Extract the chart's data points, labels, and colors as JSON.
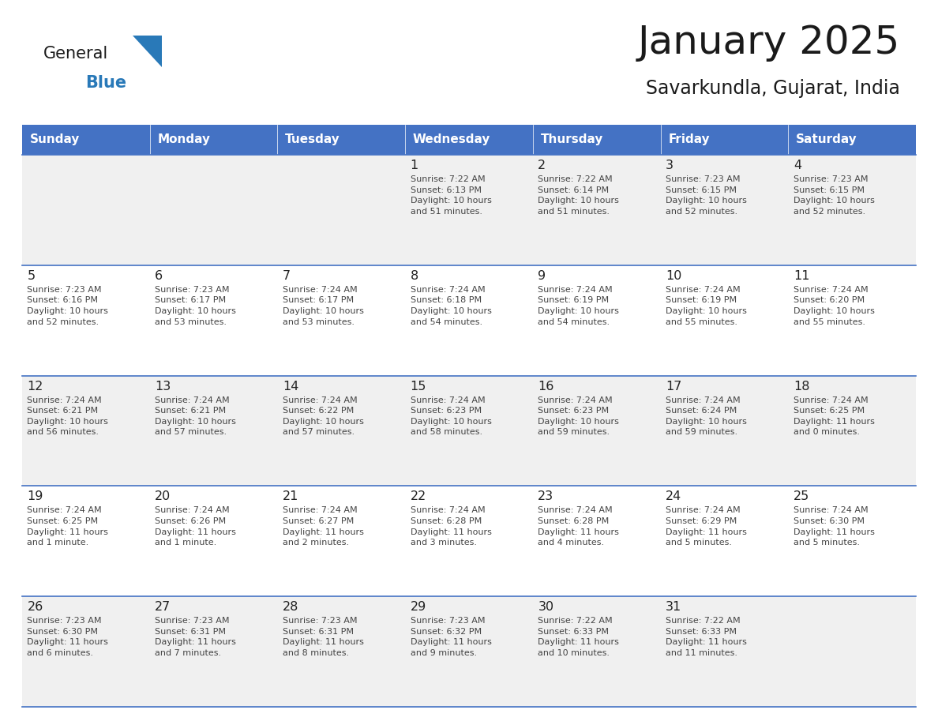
{
  "title": "January 2025",
  "subtitle": "Savarkundla, Gujarat, India",
  "header_bg": "#4472C4",
  "header_text_color": "#FFFFFF",
  "days_of_week": [
    "Sunday",
    "Monday",
    "Tuesday",
    "Wednesday",
    "Thursday",
    "Friday",
    "Saturday"
  ],
  "weeks": [
    [
      {
        "day": "",
        "info": ""
      },
      {
        "day": "",
        "info": ""
      },
      {
        "day": "",
        "info": ""
      },
      {
        "day": "1",
        "info": "Sunrise: 7:22 AM\nSunset: 6:13 PM\nDaylight: 10 hours\nand 51 minutes."
      },
      {
        "day": "2",
        "info": "Sunrise: 7:22 AM\nSunset: 6:14 PM\nDaylight: 10 hours\nand 51 minutes."
      },
      {
        "day": "3",
        "info": "Sunrise: 7:23 AM\nSunset: 6:15 PM\nDaylight: 10 hours\nand 52 minutes."
      },
      {
        "day": "4",
        "info": "Sunrise: 7:23 AM\nSunset: 6:15 PM\nDaylight: 10 hours\nand 52 minutes."
      }
    ],
    [
      {
        "day": "5",
        "info": "Sunrise: 7:23 AM\nSunset: 6:16 PM\nDaylight: 10 hours\nand 52 minutes."
      },
      {
        "day": "6",
        "info": "Sunrise: 7:23 AM\nSunset: 6:17 PM\nDaylight: 10 hours\nand 53 minutes."
      },
      {
        "day": "7",
        "info": "Sunrise: 7:24 AM\nSunset: 6:17 PM\nDaylight: 10 hours\nand 53 minutes."
      },
      {
        "day": "8",
        "info": "Sunrise: 7:24 AM\nSunset: 6:18 PM\nDaylight: 10 hours\nand 54 minutes."
      },
      {
        "day": "9",
        "info": "Sunrise: 7:24 AM\nSunset: 6:19 PM\nDaylight: 10 hours\nand 54 minutes."
      },
      {
        "day": "10",
        "info": "Sunrise: 7:24 AM\nSunset: 6:19 PM\nDaylight: 10 hours\nand 55 minutes."
      },
      {
        "day": "11",
        "info": "Sunrise: 7:24 AM\nSunset: 6:20 PM\nDaylight: 10 hours\nand 55 minutes."
      }
    ],
    [
      {
        "day": "12",
        "info": "Sunrise: 7:24 AM\nSunset: 6:21 PM\nDaylight: 10 hours\nand 56 minutes."
      },
      {
        "day": "13",
        "info": "Sunrise: 7:24 AM\nSunset: 6:21 PM\nDaylight: 10 hours\nand 57 minutes."
      },
      {
        "day": "14",
        "info": "Sunrise: 7:24 AM\nSunset: 6:22 PM\nDaylight: 10 hours\nand 57 minutes."
      },
      {
        "day": "15",
        "info": "Sunrise: 7:24 AM\nSunset: 6:23 PM\nDaylight: 10 hours\nand 58 minutes."
      },
      {
        "day": "16",
        "info": "Sunrise: 7:24 AM\nSunset: 6:23 PM\nDaylight: 10 hours\nand 59 minutes."
      },
      {
        "day": "17",
        "info": "Sunrise: 7:24 AM\nSunset: 6:24 PM\nDaylight: 10 hours\nand 59 minutes."
      },
      {
        "day": "18",
        "info": "Sunrise: 7:24 AM\nSunset: 6:25 PM\nDaylight: 11 hours\nand 0 minutes."
      }
    ],
    [
      {
        "day": "19",
        "info": "Sunrise: 7:24 AM\nSunset: 6:25 PM\nDaylight: 11 hours\nand 1 minute."
      },
      {
        "day": "20",
        "info": "Sunrise: 7:24 AM\nSunset: 6:26 PM\nDaylight: 11 hours\nand 1 minute."
      },
      {
        "day": "21",
        "info": "Sunrise: 7:24 AM\nSunset: 6:27 PM\nDaylight: 11 hours\nand 2 minutes."
      },
      {
        "day": "22",
        "info": "Sunrise: 7:24 AM\nSunset: 6:28 PM\nDaylight: 11 hours\nand 3 minutes."
      },
      {
        "day": "23",
        "info": "Sunrise: 7:24 AM\nSunset: 6:28 PM\nDaylight: 11 hours\nand 4 minutes."
      },
      {
        "day": "24",
        "info": "Sunrise: 7:24 AM\nSunset: 6:29 PM\nDaylight: 11 hours\nand 5 minutes."
      },
      {
        "day": "25",
        "info": "Sunrise: 7:24 AM\nSunset: 6:30 PM\nDaylight: 11 hours\nand 5 minutes."
      }
    ],
    [
      {
        "day": "26",
        "info": "Sunrise: 7:23 AM\nSunset: 6:30 PM\nDaylight: 11 hours\nand 6 minutes."
      },
      {
        "day": "27",
        "info": "Sunrise: 7:23 AM\nSunset: 6:31 PM\nDaylight: 11 hours\nand 7 minutes."
      },
      {
        "day": "28",
        "info": "Sunrise: 7:23 AM\nSunset: 6:31 PM\nDaylight: 11 hours\nand 8 minutes."
      },
      {
        "day": "29",
        "info": "Sunrise: 7:23 AM\nSunset: 6:32 PM\nDaylight: 11 hours\nand 9 minutes."
      },
      {
        "day": "30",
        "info": "Sunrise: 7:22 AM\nSunset: 6:33 PM\nDaylight: 11 hours\nand 10 minutes."
      },
      {
        "day": "31",
        "info": "Sunrise: 7:22 AM\nSunset: 6:33 PM\nDaylight: 11 hours\nand 11 minutes."
      },
      {
        "day": "",
        "info": ""
      }
    ]
  ],
  "logo_general_color": "#1a1a1a",
  "logo_blue_color": "#2979b8",
  "logo_triangle_color": "#2979b8",
  "title_color": "#1a1a1a",
  "subtitle_color": "#1a1a1a",
  "header_bg_color": "#4472C4",
  "row_bg_colors": [
    "#f0f0f0",
    "#ffffff"
  ],
  "cell_border_color": "#4472C4",
  "day_num_color": "#222222",
  "info_text_color": "#444444",
  "bottom_line_color": "#4472C4"
}
